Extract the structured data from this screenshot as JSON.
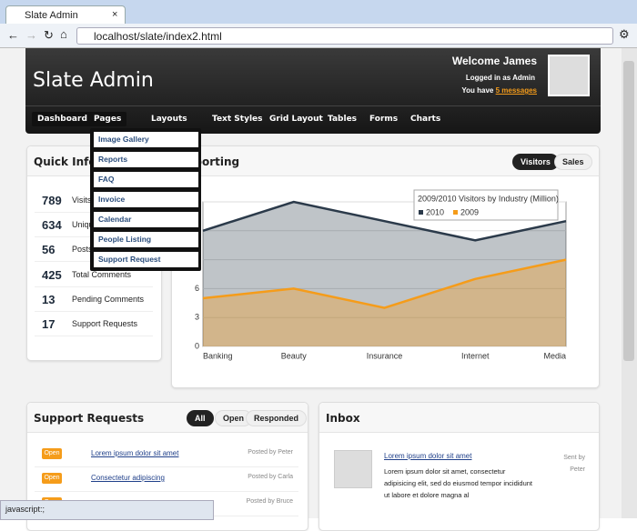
{
  "browser": {
    "tab_title": "Slate Admin",
    "url": "localhost/slate/index2.html",
    "status": "javascript:;"
  },
  "header": {
    "title": "Slate Admin",
    "welcome": "Welcome James",
    "logged_in": "Logged in as Admin",
    "messages_prefix": "You have",
    "messages_link": "5 messages"
  },
  "nav": [
    "Dashboard",
    "Pages",
    "Layouts",
    "Text Styles",
    "Grid Layout",
    "Tables",
    "Forms",
    "Charts"
  ],
  "dropdown": [
    "Image Gallery",
    "Reports",
    "FAQ",
    "Invoice",
    "Calendar",
    "People Listing",
    "Support Request"
  ],
  "quick_info": {
    "title": "Quick Info",
    "stats": [
      {
        "value": 789,
        "label": "Visits"
      },
      {
        "value": 634,
        "label": "Unique Visitors"
      },
      {
        "value": 56,
        "label": "Posts"
      },
      {
        "value": 425,
        "label": "Total Comments"
      },
      {
        "value": 13,
        "label": "Pending Comments"
      },
      {
        "value": 17,
        "label": "Support Requests"
      }
    ]
  },
  "chart_panel": {
    "title": "Reporting",
    "tabs": [
      "Visitors",
      "Sales"
    ]
  },
  "chart_data": {
    "type": "area",
    "title": "2009/2010 Visitors by Industry (Million)",
    "categories": [
      "Banking",
      "Beauty",
      "Insurance",
      "Internet",
      "Media"
    ],
    "series": [
      {
        "name": "2010",
        "color": "#2b3a4a",
        "values": [
          12,
          15,
          13,
          11,
          13
        ]
      },
      {
        "name": "2009",
        "color": "#f59c1a",
        "values": [
          5,
          6,
          4,
          7,
          9
        ]
      }
    ],
    "ylim": [
      0,
      15
    ],
    "yticks": [
      0,
      3,
      6,
      9,
      12,
      15
    ],
    "grid": true
  },
  "support_requests": {
    "title": "Support Requests",
    "filters": [
      "All",
      "Open",
      "Responded"
    ],
    "rows": [
      {
        "status": "Open",
        "subject": "Lorem ipsum dolor sit amet",
        "posted": "Posted by Peter"
      },
      {
        "status": "Open",
        "subject": "Consectetur adipiscing",
        "posted": "Posted by Carla"
      },
      {
        "status": "Open",
        "subject": "",
        "posted": "Posted by Bruce"
      }
    ]
  },
  "inbox": {
    "title": "Inbox",
    "messages": [
      {
        "subject": "Lorem ipsum dolor sit amet",
        "body": "Lorem ipsum dolor sit amet, consectetur adipisicing elit, sed do eiusmod tempor incididunt ut labore et dolore magna al",
        "sent": "Sent by Peter"
      }
    ]
  }
}
